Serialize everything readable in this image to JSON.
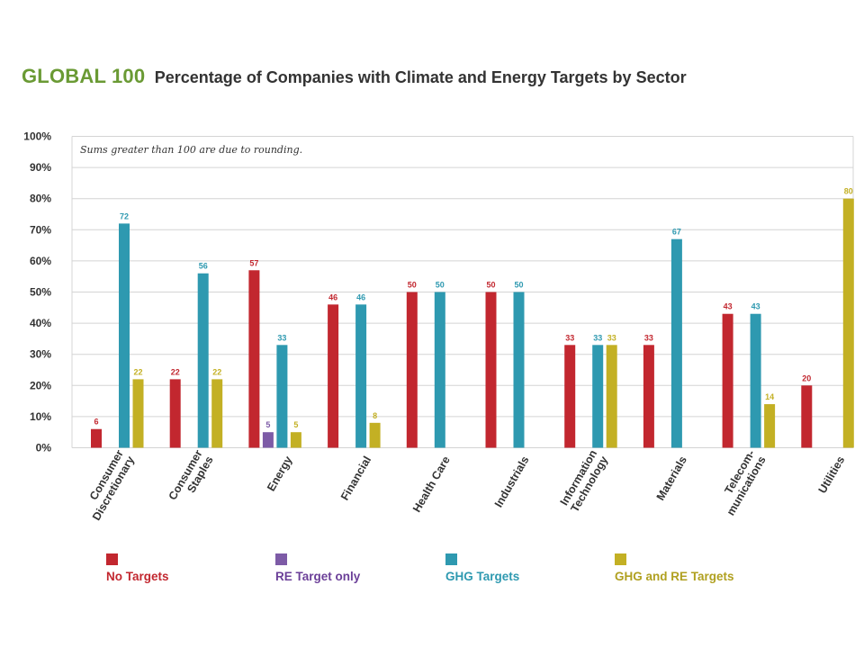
{
  "header": {
    "brand": "GLOBAL 100",
    "title": "Percentage of Companies with Climate and Energy Targets by Sector"
  },
  "colors": {
    "brand": "#6a9a34",
    "no_targets": "#c2272f",
    "re_only": "#7d5ba6",
    "ghg": "#2e99b0",
    "ghg_re": "#c3b024",
    "grid": "#d4d4d4",
    "axis_text": "#333333"
  },
  "chart_data": {
    "type": "bar",
    "title": "Percentage of Companies with Climate and Energy Targets by Sector",
    "note": "Sums greater than 100 are due to rounding.",
    "ylim": [
      0,
      100
    ],
    "y_ticks": [
      "0%",
      "10%",
      "20%",
      "30%",
      "40%",
      "50%",
      "60%",
      "70%",
      "80%",
      "90%",
      "100%"
    ],
    "grid": true,
    "legend_position": "bottom",
    "categories": [
      [
        "Consumer",
        "Discretionary"
      ],
      [
        "Consumer",
        "Staples"
      ],
      [
        "Energy"
      ],
      [
        "Financial"
      ],
      [
        "Health Care"
      ],
      [
        "Industrials"
      ],
      [
        "Information",
        "Technology"
      ],
      [
        "Materials"
      ],
      [
        "Telecom-",
        "munications"
      ],
      [
        "Utilities"
      ]
    ],
    "series": [
      {
        "name": "No Targets",
        "color": "#c2272f",
        "values": [
          6,
          22,
          57,
          46,
          50,
          50,
          33,
          33,
          43,
          20
        ]
      },
      {
        "name": "RE Target only",
        "color": "#7d5ba6",
        "values": [
          null,
          null,
          5,
          null,
          null,
          null,
          null,
          null,
          null,
          null
        ]
      },
      {
        "name": "GHG Targets",
        "color": "#2e99b0",
        "values": [
          72,
          56,
          33,
          46,
          50,
          50,
          33,
          67,
          43,
          null
        ]
      },
      {
        "name": "GHG and RE Targets",
        "color": "#c3b024",
        "values": [
          22,
          22,
          5,
          8,
          null,
          null,
          33,
          null,
          14,
          80
        ]
      }
    ]
  }
}
